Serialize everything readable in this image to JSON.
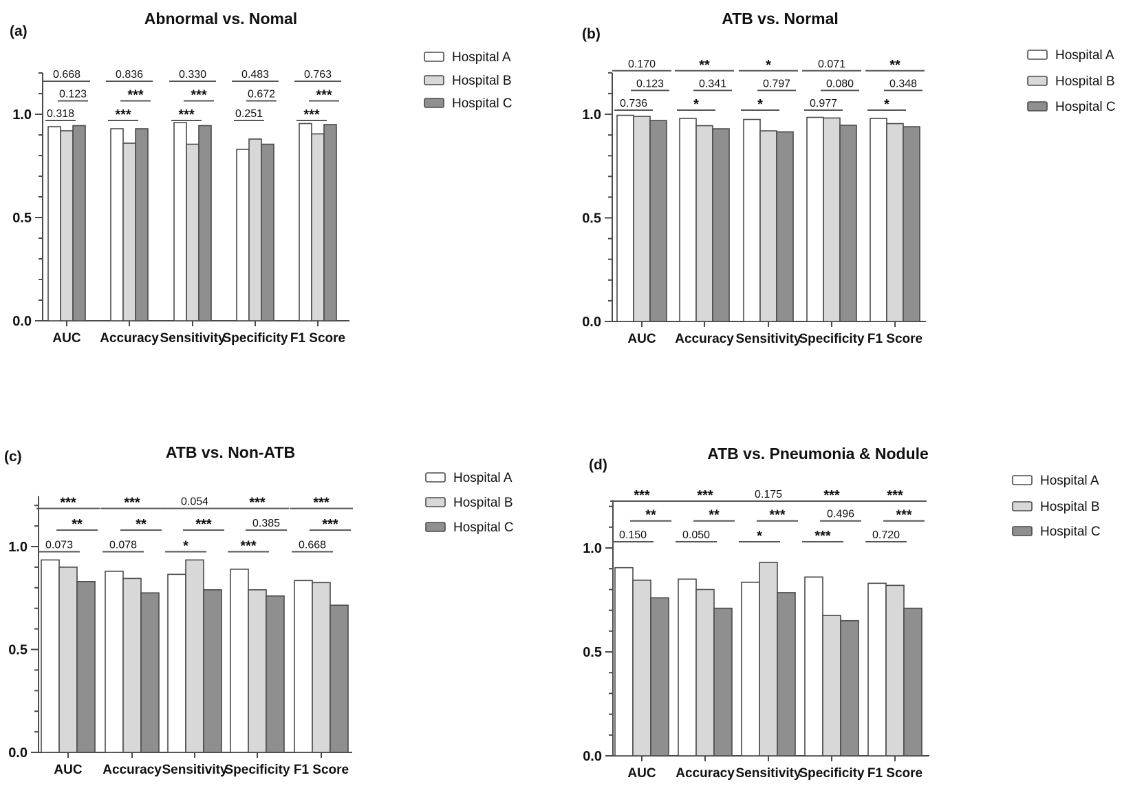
{
  "legend": {
    "items": [
      {
        "label": "Hospital A",
        "fill": "#ffffff"
      },
      {
        "label": "Hospital B",
        "fill": "#d8d8d8"
      },
      {
        "label": "Hospital C",
        "fill": "#8f8f8f"
      }
    ]
  },
  "colors": {
    "bar_border": "#4a4a4a",
    "axis": "#4a4a4a",
    "sig_line": "#555555",
    "text": "#111111"
  },
  "chart_data": [
    {
      "id": "a",
      "panel_label": "(a)",
      "type": "bar",
      "title": "Abnormal vs. Nomal",
      "categories": [
        "AUC",
        "Accuracy",
        "Sensitivity",
        "Specificity",
        "F1 Score"
      ],
      "series": [
        {
          "name": "Hospital A",
          "values": [
            0.94,
            0.93,
            0.96,
            0.83,
            0.955
          ]
        },
        {
          "name": "Hospital B",
          "values": [
            0.92,
            0.86,
            0.855,
            0.88,
            0.905
          ]
        },
        {
          "name": "Hospital C",
          "values": [
            0.945,
            0.93,
            0.945,
            0.855,
            0.95
          ]
        }
      ],
      "ylim": [
        0,
        1.2
      ],
      "y_ticks": [
        "0.0",
        "0.5",
        "1.0"
      ],
      "grid": false,
      "legend_position": "right",
      "significance": {
        "a_vs_b": [
          "0.318",
          "***",
          "***",
          "0.251",
          "***"
        ],
        "b_vs_c": [
          "0.123",
          "***",
          "***",
          "0.672",
          "***"
        ],
        "a_vs_c": [
          "0.668",
          "0.836",
          "0.330",
          "0.483",
          "0.763"
        ]
      }
    },
    {
      "id": "b",
      "panel_label": "(b)",
      "type": "bar",
      "title": "ATB vs. Normal",
      "categories": [
        "AUC",
        "Accuracy",
        "Sensitivity",
        "Specificity",
        "F1 Score"
      ],
      "series": [
        {
          "name": "Hospital A",
          "values": [
            0.995,
            0.98,
            0.975,
            0.985,
            0.98
          ]
        },
        {
          "name": "Hospital B",
          "values": [
            0.99,
            0.945,
            0.92,
            0.982,
            0.955
          ]
        },
        {
          "name": "Hospital C",
          "values": [
            0.97,
            0.93,
            0.915,
            0.947,
            0.94
          ]
        }
      ],
      "ylim": [
        0,
        1.2
      ],
      "y_ticks": [
        "0.0",
        "0.5",
        "1.0"
      ],
      "grid": false,
      "legend_position": "right",
      "significance": {
        "a_vs_b": [
          "0.736",
          "*",
          "*",
          "0.977",
          "*"
        ],
        "b_vs_c": [
          "0.123",
          "0.341",
          "0.797",
          "0.080",
          "0.348"
        ],
        "a_vs_c": [
          "0.170",
          "**",
          "*",
          "0.071",
          "**"
        ]
      }
    },
    {
      "id": "c",
      "panel_label": "(c)",
      "type": "bar",
      "title": "ATB vs. Non-ATB",
      "categories": [
        "AUC",
        "Accuracy",
        "Sensitivity",
        "Specificity",
        "F1 Score"
      ],
      "series": [
        {
          "name": "Hospital A",
          "values": [
            0.935,
            0.88,
            0.865,
            0.89,
            0.835
          ]
        },
        {
          "name": "Hospital B",
          "values": [
            0.9,
            0.845,
            0.935,
            0.79,
            0.825
          ]
        },
        {
          "name": "Hospital C",
          "values": [
            0.83,
            0.775,
            0.79,
            0.76,
            0.715
          ]
        }
      ],
      "ylim": [
        0,
        1.2
      ],
      "y_ticks": [
        "0.0",
        "0.5",
        "1.0"
      ],
      "grid": false,
      "legend_position": "right",
      "significance": {
        "a_vs_b": [
          "0.073",
          "0.078",
          "*",
          "***",
          "0.668"
        ],
        "b_vs_c": [
          "**",
          "**",
          "***",
          "0.385",
          "***"
        ],
        "a_vs_c": [
          "***",
          "***",
          "0.054",
          "***",
          "***"
        ]
      }
    },
    {
      "id": "d",
      "panel_label": "(d)",
      "type": "bar",
      "title": "ATB vs. Pneumonia & Nodule",
      "categories": [
        "AUC",
        "Accuracy",
        "Sensitivity",
        "Specificity",
        "F1 Score"
      ],
      "series": [
        {
          "name": "Hospital A",
          "values": [
            0.905,
            0.85,
            0.835,
            0.86,
            0.83
          ]
        },
        {
          "name": "Hospital B",
          "values": [
            0.845,
            0.8,
            0.93,
            0.675,
            0.82
          ]
        },
        {
          "name": "Hospital C",
          "values": [
            0.76,
            0.71,
            0.785,
            0.65,
            0.71
          ]
        }
      ],
      "ylim": [
        0,
        1.2
      ],
      "y_ticks": [
        "0.0",
        "0.5",
        "1.0"
      ],
      "grid": false,
      "legend_position": "right",
      "significance": {
        "a_vs_b": [
          "0.150",
          "0.050",
          "*",
          "***",
          "0.720"
        ],
        "b_vs_c": [
          "**",
          "**",
          "***",
          "0.496",
          "***"
        ],
        "a_vs_c": [
          "***",
          "***",
          "0.175",
          "***",
          "***"
        ]
      }
    }
  ]
}
